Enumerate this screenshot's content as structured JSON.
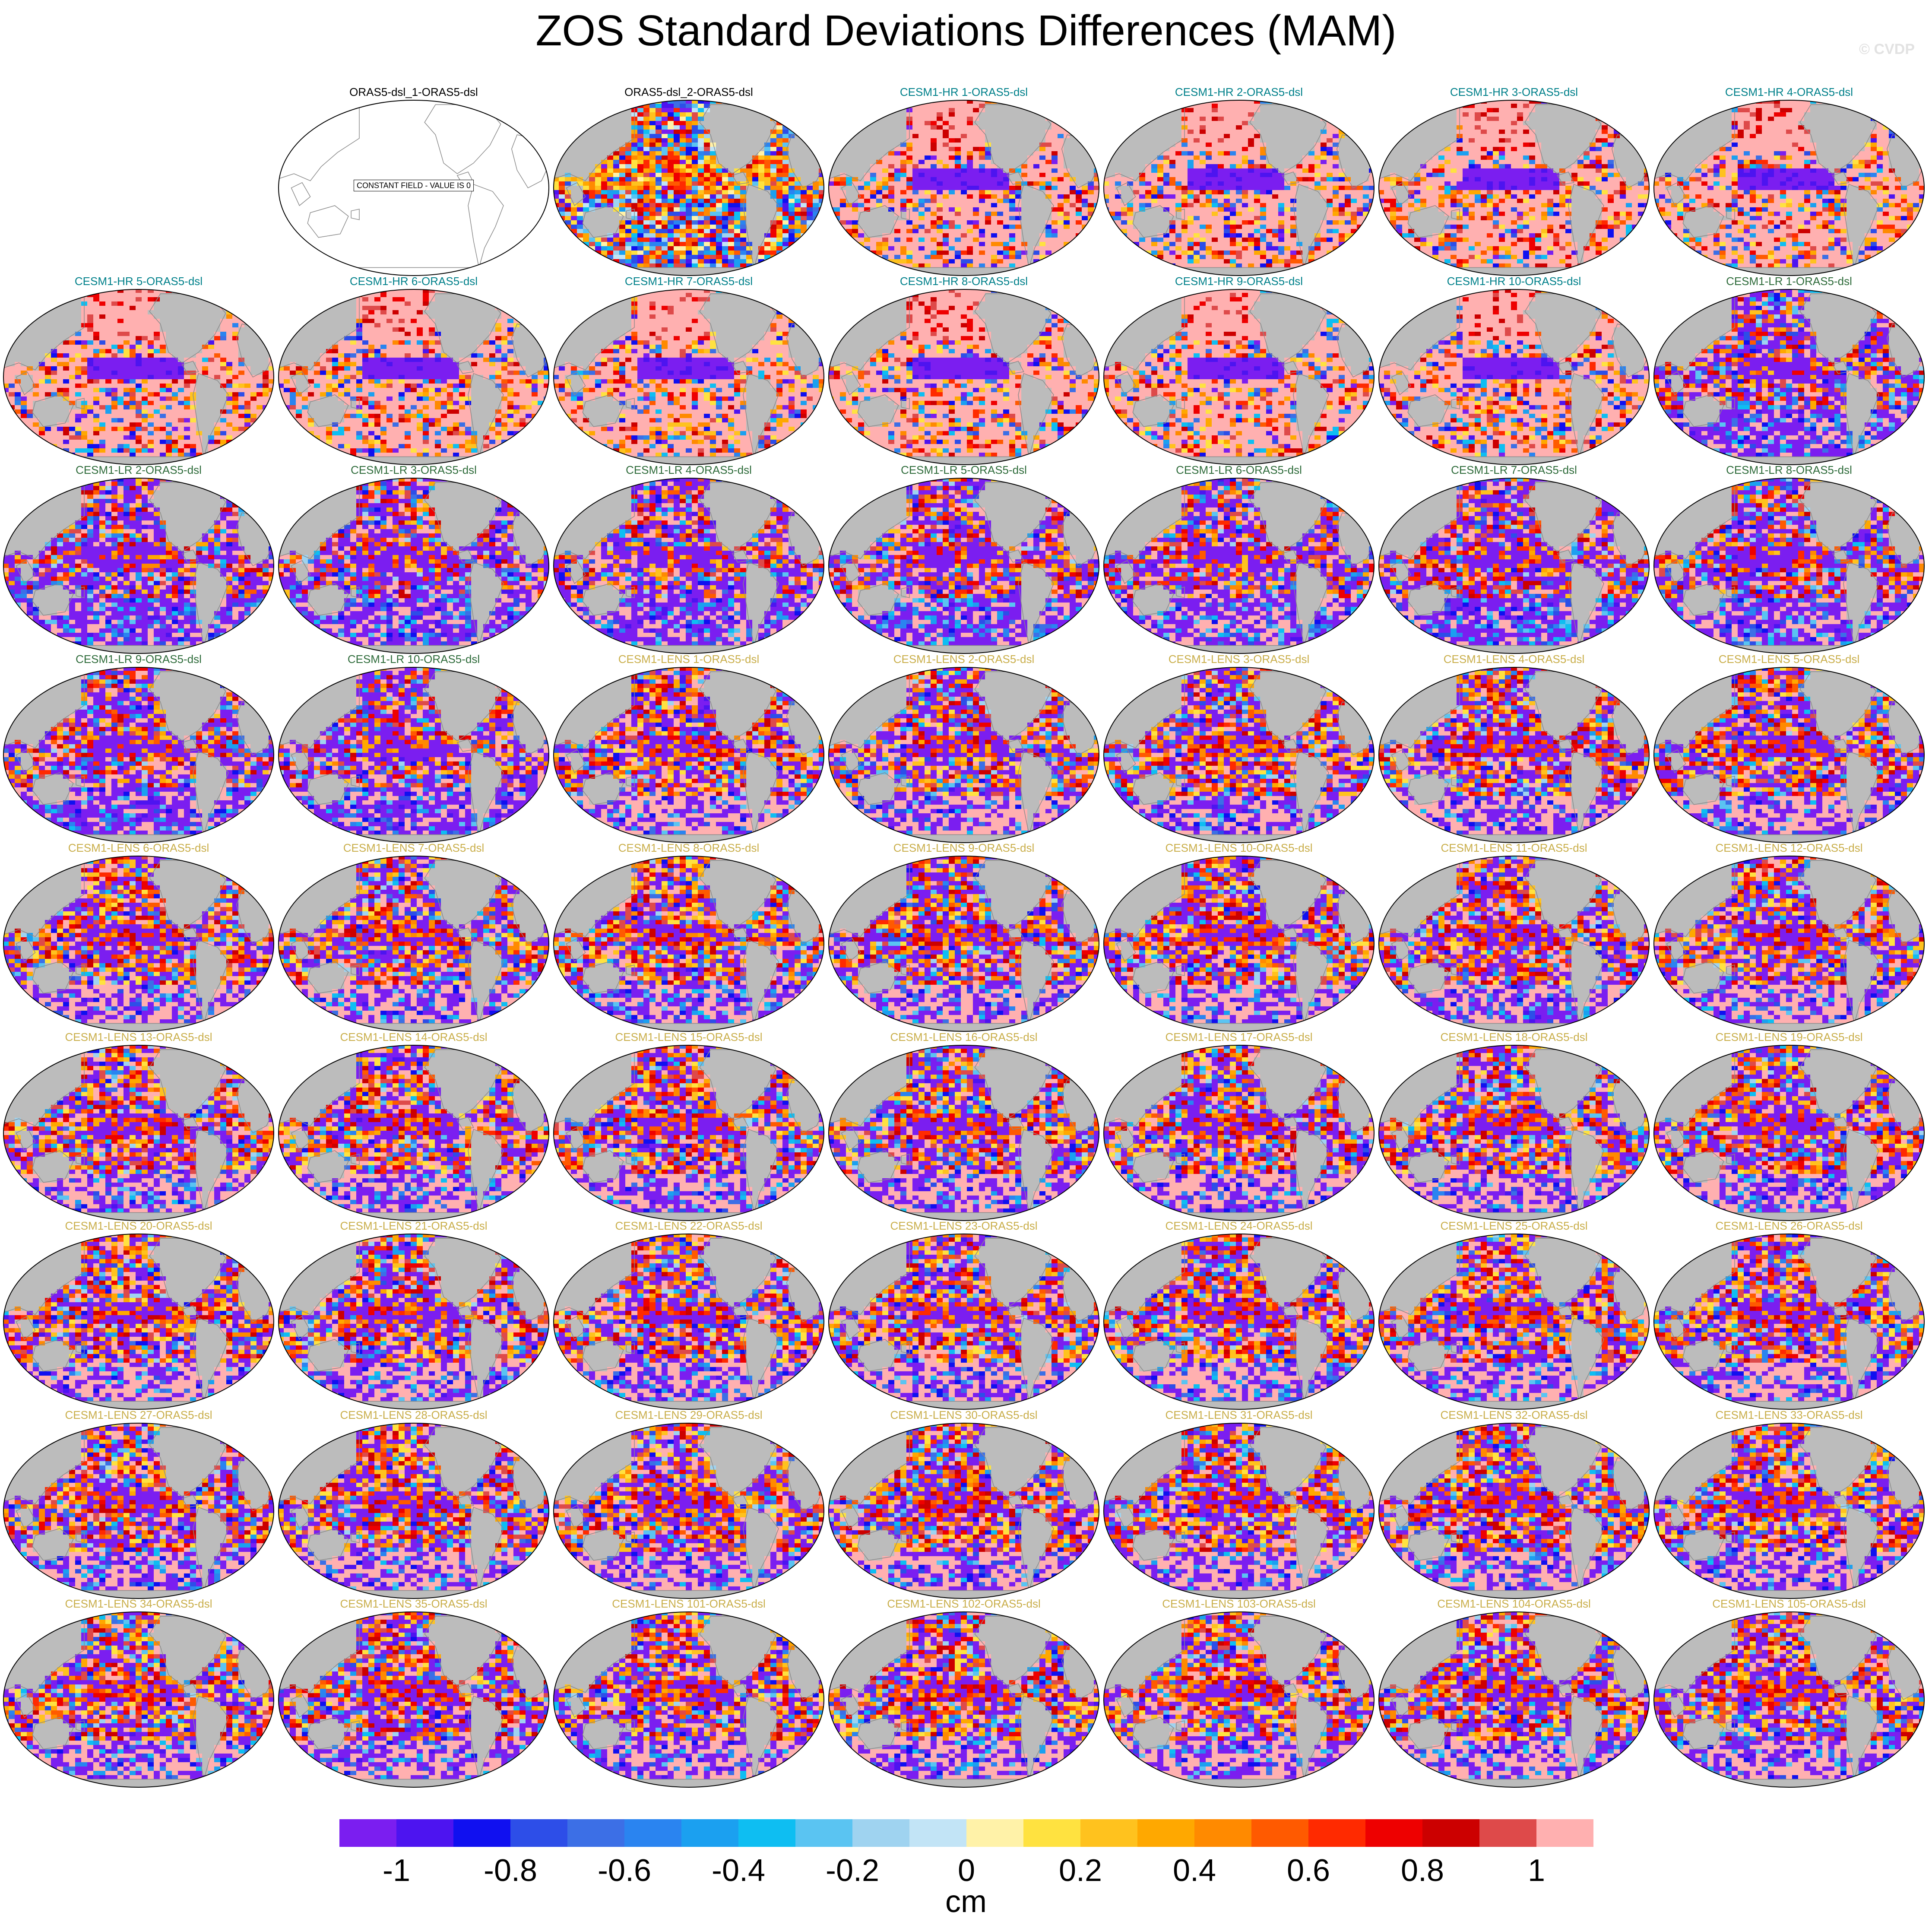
{
  "title": "ZOS Standard Deviations Differences (MAM)",
  "watermark": "© CVDP",
  "colors": {
    "hr_title": "#00808a",
    "lr_title": "#2e6b3a",
    "lens_title": "#c9ae4a",
    "obs_title": "#000000",
    "land": "#bcbcbc",
    "coast": "#8a8a8a"
  },
  "panels": [
    {
      "label": "",
      "kind": "empty"
    },
    {
      "label": "ORAS5-dsl_1-ORAS5-dsl",
      "kind": "constant",
      "note": "CONSTANT FIELD - VALUE IS 0"
    },
    {
      "label": "ORAS5-dsl_2-ORAS5-dsl",
      "kind": "obs"
    },
    {
      "label": "CESM1-HR 1-ORAS5-dsl",
      "kind": "hr"
    },
    {
      "label": "CESM1-HR 2-ORAS5-dsl",
      "kind": "hr"
    },
    {
      "label": "CESM1-HR 3-ORAS5-dsl",
      "kind": "hr"
    },
    {
      "label": "CESM1-HR 4-ORAS5-dsl",
      "kind": "hr"
    },
    {
      "label": "CESM1-HR 5-ORAS5-dsl",
      "kind": "hr"
    },
    {
      "label": "CESM1-HR 6-ORAS5-dsl",
      "kind": "hr"
    },
    {
      "label": "CESM1-HR 7-ORAS5-dsl",
      "kind": "hr"
    },
    {
      "label": "CESM1-HR 8-ORAS5-dsl",
      "kind": "hr"
    },
    {
      "label": "CESM1-HR 9-ORAS5-dsl",
      "kind": "hr"
    },
    {
      "label": "CESM1-HR 10-ORAS5-dsl",
      "kind": "hr"
    },
    {
      "label": "CESM1-LR 1-ORAS5-dsl",
      "kind": "lr"
    },
    {
      "label": "CESM1-LR 2-ORAS5-dsl",
      "kind": "lr"
    },
    {
      "label": "CESM1-LR 3-ORAS5-dsl",
      "kind": "lr"
    },
    {
      "label": "CESM1-LR 4-ORAS5-dsl",
      "kind": "lr"
    },
    {
      "label": "CESM1-LR 5-ORAS5-dsl",
      "kind": "lr"
    },
    {
      "label": "CESM1-LR 6-ORAS5-dsl",
      "kind": "lr"
    },
    {
      "label": "CESM1-LR 7-ORAS5-dsl",
      "kind": "lr"
    },
    {
      "label": "CESM1-LR 8-ORAS5-dsl",
      "kind": "lr"
    },
    {
      "label": "CESM1-LR 9-ORAS5-dsl",
      "kind": "lr"
    },
    {
      "label": "CESM1-LR 10-ORAS5-dsl",
      "kind": "lr"
    },
    {
      "label": "CESM1-LENS 1-ORAS5-dsl",
      "kind": "lens"
    },
    {
      "label": "CESM1-LENS 2-ORAS5-dsl",
      "kind": "lens"
    },
    {
      "label": "CESM1-LENS 3-ORAS5-dsl",
      "kind": "lens"
    },
    {
      "label": "CESM1-LENS 4-ORAS5-dsl",
      "kind": "lens"
    },
    {
      "label": "CESM1-LENS 5-ORAS5-dsl",
      "kind": "lens"
    },
    {
      "label": "CESM1-LENS 6-ORAS5-dsl",
      "kind": "lens"
    },
    {
      "label": "CESM1-LENS 7-ORAS5-dsl",
      "kind": "lens"
    },
    {
      "label": "CESM1-LENS 8-ORAS5-dsl",
      "kind": "lens"
    },
    {
      "label": "CESM1-LENS 9-ORAS5-dsl",
      "kind": "lens"
    },
    {
      "label": "CESM1-LENS 10-ORAS5-dsl",
      "kind": "lens"
    },
    {
      "label": "CESM1-LENS 11-ORAS5-dsl",
      "kind": "lens"
    },
    {
      "label": "CESM1-LENS 12-ORAS5-dsl",
      "kind": "lens"
    },
    {
      "label": "CESM1-LENS 13-ORAS5-dsl",
      "kind": "lens"
    },
    {
      "label": "CESM1-LENS 14-ORAS5-dsl",
      "kind": "lens"
    },
    {
      "label": "CESM1-LENS 15-ORAS5-dsl",
      "kind": "lens"
    },
    {
      "label": "CESM1-LENS 16-ORAS5-dsl",
      "kind": "lens"
    },
    {
      "label": "CESM1-LENS 17-ORAS5-dsl",
      "kind": "lens"
    },
    {
      "label": "CESM1-LENS 18-ORAS5-dsl",
      "kind": "lens"
    },
    {
      "label": "CESM1-LENS 19-ORAS5-dsl",
      "kind": "lens"
    },
    {
      "label": "CESM1-LENS 20-ORAS5-dsl",
      "kind": "lens"
    },
    {
      "label": "CESM1-LENS 21-ORAS5-dsl",
      "kind": "lens"
    },
    {
      "label": "CESM1-LENS 22-ORAS5-dsl",
      "kind": "lens"
    },
    {
      "label": "CESM1-LENS 23-ORAS5-dsl",
      "kind": "lens"
    },
    {
      "label": "CESM1-LENS 24-ORAS5-dsl",
      "kind": "lens"
    },
    {
      "label": "CESM1-LENS 25-ORAS5-dsl",
      "kind": "lens"
    },
    {
      "label": "CESM1-LENS 26-ORAS5-dsl",
      "kind": "lens"
    },
    {
      "label": "CESM1-LENS 27-ORAS5-dsl",
      "kind": "lens"
    },
    {
      "label": "CESM1-LENS 28-ORAS5-dsl",
      "kind": "lens"
    },
    {
      "label": "CESM1-LENS 29-ORAS5-dsl",
      "kind": "lens"
    },
    {
      "label": "CESM1-LENS 30-ORAS5-dsl",
      "kind": "lens"
    },
    {
      "label": "CESM1-LENS 31-ORAS5-dsl",
      "kind": "lens"
    },
    {
      "label": "CESM1-LENS 32-ORAS5-dsl",
      "kind": "lens"
    },
    {
      "label": "CESM1-LENS 33-ORAS5-dsl",
      "kind": "lens"
    },
    {
      "label": "CESM1-LENS 34-ORAS5-dsl",
      "kind": "lens"
    },
    {
      "label": "CESM1-LENS 35-ORAS5-dsl",
      "kind": "lens"
    },
    {
      "label": "CESM1-LENS 101-ORAS5-dsl",
      "kind": "lens"
    },
    {
      "label": "CESM1-LENS 102-ORAS5-dsl",
      "kind": "lens"
    },
    {
      "label": "CESM1-LENS 103-ORAS5-dsl",
      "kind": "lens"
    },
    {
      "label": "CESM1-LENS 104-ORAS5-dsl",
      "kind": "lens"
    },
    {
      "label": "CESM1-LENS 105-ORAS5-dsl",
      "kind": "lens"
    }
  ],
  "colorbar": {
    "units": "cm",
    "colors": [
      "#7b1ef0",
      "#4d14f0",
      "#1010f0",
      "#2d4ee8",
      "#3c6fe6",
      "#2a84f0",
      "#1ba0f0",
      "#0ebef2",
      "#5ac4f2",
      "#9fd3f0",
      "#c2e4f6",
      "#fff2a8",
      "#ffe240",
      "#ffc21e",
      "#ffa800",
      "#ff8a00",
      "#ff5a00",
      "#ff2a00",
      "#ee0000",
      "#cc0000",
      "#de4a4a",
      "#ffb0b0"
    ],
    "tick_labels": [
      "-1",
      "-0.8",
      "-0.6",
      "-0.4",
      "-0.2",
      "0",
      "0.2",
      "0.4",
      "0.6",
      "0.8",
      "1"
    ]
  }
}
